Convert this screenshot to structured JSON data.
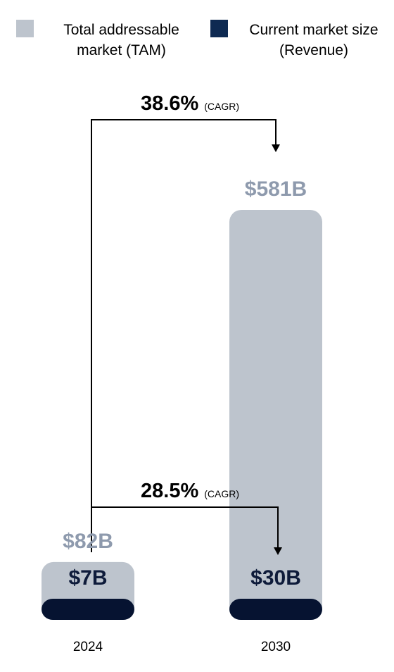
{
  "colors": {
    "tam": "#bdc4cd",
    "revenue": "#061331",
    "tam_label": "#8e9aad",
    "revenue_label": "#0e1b3a",
    "arrow": "#000000"
  },
  "legend": {
    "items": [
      {
        "label": "Total addressable\nmarket (TAM)",
        "color": "#bdc4cd"
      },
      {
        "label": "Current market size\n(Revenue)",
        "color": "#0e2a52"
      }
    ]
  },
  "chart_data": {
    "type": "bar",
    "categories": [
      "2024",
      "2030"
    ],
    "series": [
      {
        "name": "Total addressable market (TAM)",
        "values": [
          82,
          581
        ],
        "labels": [
          "$82B",
          "$581B"
        ]
      },
      {
        "name": "Current market size (Revenue)",
        "values": [
          7,
          30
        ],
        "labels": [
          "$7B",
          "$30B"
        ]
      }
    ],
    "unit": "$B",
    "overlapping": true,
    "annotations": [
      {
        "series": "Total addressable market (TAM)",
        "value": "38.6%",
        "suffix": "(CAGR)"
      },
      {
        "series": "Current market size (Revenue)",
        "value": "28.5%",
        "suffix": "(CAGR)"
      }
    ],
    "legend_position": "top",
    "grid": false
  }
}
